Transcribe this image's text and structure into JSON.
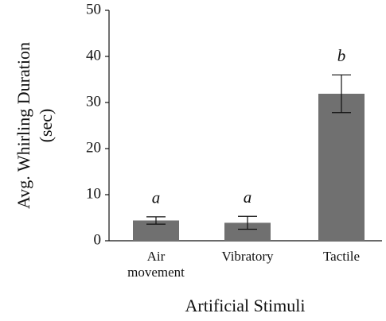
{
  "chart_data": {
    "type": "bar",
    "categories": [
      "Air movement",
      "Vibratory",
      "Tactile"
    ],
    "values": [
      4.4,
      3.9,
      31.9
    ],
    "errors": [
      0.8,
      1.4,
      4.1
    ],
    "annotations": [
      "a",
      "a",
      "b"
    ],
    "color": "#707070",
    "xlabel": "Artificial Stimuli",
    "ylabel": "Avg. Whirling Duration (sec)",
    "ylim": [
      0,
      50
    ],
    "yticks": [
      0,
      10,
      20,
      30,
      40,
      50
    ],
    "grid": false
  }
}
